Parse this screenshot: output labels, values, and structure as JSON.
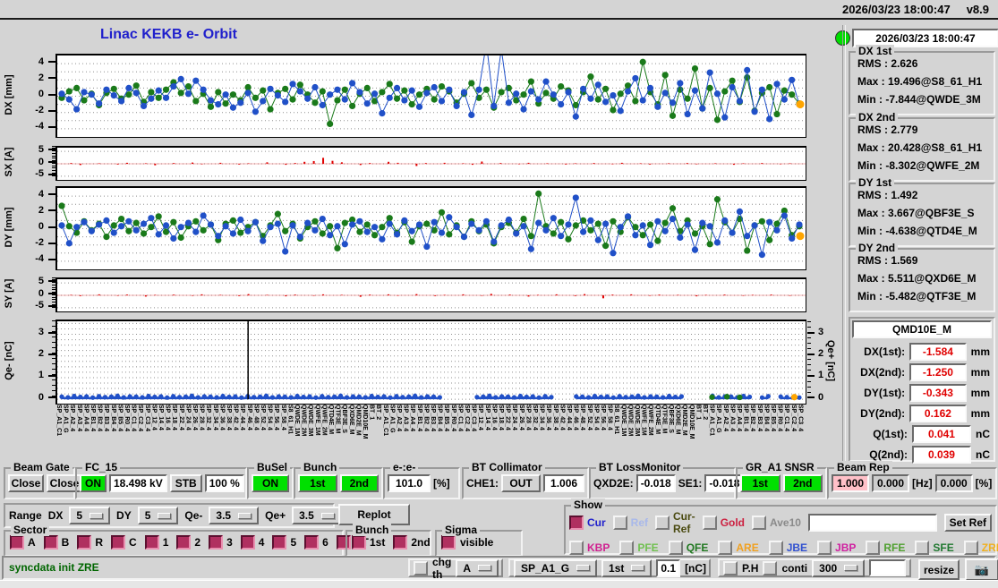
{
  "topbar": {
    "datetime": "2026/03/23 18:00:47",
    "version": "v8.9"
  },
  "header": {
    "title": "Linac KEKB e- Orbit",
    "timestamp": "2026/03/23 18:00:47"
  },
  "colors": {
    "bg": "#d4d4d4",
    "blue_series": "#2050c8",
    "green_series": "#1a7a1a",
    "red_series": "#e00000",
    "orange_marker": "#ffa500",
    "title_blue": "#2020cc",
    "value_red": "#e00000",
    "green_on": "#00e000",
    "pink": "#ffc0c8",
    "check_maroon": "#b03060"
  },
  "stats": {
    "groups": [
      {
        "title": "DX 1st",
        "rows": [
          {
            "k": "RMS :",
            "v": "2.626"
          },
          {
            "k": "Max :",
            "v": "19.496@S8_61_H1"
          },
          {
            "k": "Min :",
            "v": "-7.844@QWDE_3M"
          }
        ]
      },
      {
        "title": "DX 2nd",
        "rows": [
          {
            "k": "RMS :",
            "v": "2.779"
          },
          {
            "k": "Max :",
            "v": "20.428@S8_61_H1"
          },
          {
            "k": "Min :",
            "v": "-8.302@QWFE_2M"
          }
        ]
      },
      {
        "title": "DY 1st",
        "rows": [
          {
            "k": "RMS :",
            "v": "1.492"
          },
          {
            "k": "Max :",
            "v": "3.667@QBF3E_S"
          },
          {
            "k": "Min :",
            "v": "-4.638@QTD4E_M"
          }
        ]
      },
      {
        "title": "DY 2nd",
        "rows": [
          {
            "k": "RMS :",
            "v": "1.569"
          },
          {
            "k": "Max :",
            "v": "5.511@QXD6E_M"
          },
          {
            "k": "Min :",
            "v": "-5.482@QTF3E_M"
          }
        ]
      }
    ]
  },
  "monitor": {
    "title": "QMD10E_M",
    "rows": [
      {
        "label": "DX(1st):",
        "value": "-1.584",
        "unit": "mm"
      },
      {
        "label": "DX(2nd):",
        "value": "-1.250",
        "unit": "mm"
      },
      {
        "label": "DY(1st):",
        "value": "-0.343",
        "unit": "mm"
      },
      {
        "label": "DY(2nd):",
        "value": "0.162",
        "unit": "mm"
      },
      {
        "label": "Q(1st):",
        "value": "0.041",
        "unit": "nC"
      },
      {
        "label": "Q(2nd):",
        "value": "0.039",
        "unit": "nC"
      }
    ]
  },
  "controls": {
    "beam_gate": {
      "title": "Beam Gate",
      "b1": "Close",
      "b2": "Close"
    },
    "fc15": {
      "title": "FC_15",
      "on": "ON",
      "kv": "18.498 kV",
      "stb": "STB",
      "pct": "100 %"
    },
    "busel": {
      "title": "BuSel",
      "on": "ON"
    },
    "bunch": {
      "title": "Bunch",
      "b1": "1st",
      "b2": "2nd"
    },
    "eratio": {
      "title": "e-:e-",
      "value": "101.0",
      "unit": "[%]"
    },
    "bt_collimator": {
      "title": "BT Collimator",
      "label": "CHE1:",
      "state": "OUT",
      "value": "1.006"
    },
    "bt_lossmonitor": {
      "title": "BT LossMonitor",
      "label1": "QXD2E:",
      "value1": "-0.018",
      "label2": "SE1:",
      "value2": "-0.018"
    },
    "gr_a1": {
      "title": "GR_A1 SNSR",
      "b1": "1st",
      "b2": "2nd"
    },
    "beam_rep": {
      "title": "Beam Rep",
      "v1": "1.000",
      "v2": "0.000",
      "hz": "[Hz]",
      "v3": "0.000",
      "pct": "[%]"
    }
  },
  "range": {
    "label": "Range",
    "dx_label": "DX",
    "dx": "5",
    "dy_label": "DY",
    "dy": "5",
    "qem_label": "Qe-",
    "qem": "3.5",
    "qep_label": "Qe+",
    "qep": "3.5",
    "replot": "Replot"
  },
  "show": {
    "title": "Show",
    "row1": [
      {
        "label": "Cur",
        "color": "#2020cc",
        "checked": true
      },
      {
        "label": "Ref",
        "color": "#a8b8ea",
        "checked": false
      },
      {
        "label": "Cur-Ref",
        "color": "#4a4a10",
        "checked": false
      },
      {
        "label": "Gold",
        "color": "#cc2040",
        "checked": false
      },
      {
        "label": "Ave10",
        "color": "#8a8a8a",
        "checked": false
      }
    ],
    "ref_input": "",
    "set_ref": "Set Ref",
    "row2": [
      {
        "label": "KBP",
        "color": "#d02090",
        "checked": false
      },
      {
        "label": "PFE",
        "color": "#70c050",
        "checked": false
      },
      {
        "label": "QFE",
        "color": "#207820",
        "checked": false
      },
      {
        "label": "ARE",
        "color": "#f0a020",
        "checked": false
      },
      {
        "label": "JBE",
        "color": "#3050d0",
        "checked": false
      },
      {
        "label": "JBP",
        "color": "#d020a0",
        "checked": false
      },
      {
        "label": "RFE",
        "color": "#50a030",
        "checked": false
      },
      {
        "label": "SFE",
        "color": "#207830",
        "checked": false
      },
      {
        "label": "ZRE",
        "color": "#f0b020",
        "checked": false
      }
    ]
  },
  "sector": {
    "title": "Sector",
    "items": [
      "A",
      "B",
      "R",
      "C",
      "1",
      "2",
      "3",
      "4",
      "5",
      "6",
      "BT"
    ]
  },
  "bunch_sel": {
    "title": "Bunch",
    "items": [
      "1st",
      "2nd"
    ]
  },
  "sigma": {
    "title": "Sigma",
    "label": "visible"
  },
  "statusbar": {
    "message": "syncdata init ZRE",
    "chg_th": "chg th",
    "th_option": "A",
    "sp_option": "SP_A1_G",
    "bunch_option": "1st",
    "threshold": "0.1",
    "threshold_unit": "[nC]",
    "ph": "P.H",
    "conti": "conti",
    "count_option": "300",
    "extra_value": "",
    "resize": "resize",
    "camera_icon": "camera"
  },
  "xaxis_labels": [
    "SP_A1_C1",
    "SP_A1_G",
    "SP_A2_4",
    "SP_A3_4",
    "SP_A4_4",
    "SP_B1_4",
    "SP_B2_4",
    "SP_B3_4",
    "SP_B4_4",
    "SP_B5_4",
    "SP_R0_4",
    "SP_C1_4",
    "SP_C2_4",
    "SP_C3_4",
    "SP_12_4",
    "SP_14_4",
    "SP_16_4",
    "SP_18_4",
    "SP_22_4",
    "SP_24_4",
    "SP_26_4",
    "SP_28_4",
    "SP_32_4",
    "SP_34_4",
    "SP_36_4",
    "SP_38_4",
    "SP_42_4",
    "SP_44_4",
    "SP_46_4",
    "SP_48_4",
    "SP_52_4",
    "SP_54_4",
    "SP_56_4",
    "SP_58_4",
    "S8_61_H1",
    "QWDE_1M",
    "QWDE_2M",
    "QWDE_3M",
    "QWFE_1M",
    "QWFE_2M",
    "QTD4E_M",
    "QTF3E_M",
    "QBF3E_S",
    "QXD6E_M",
    "QMD2E_M",
    "QMD10E_M",
    "BT_1",
    "BT_2"
  ],
  "chart_data": [
    {
      "id": "dx",
      "type": "scatter-line",
      "ylabel": "DX [mm]",
      "ylim": [
        -5,
        5
      ],
      "yticks": [
        4,
        2,
        0,
        -2,
        -4
      ],
      "grid_values": [
        4,
        3,
        2,
        1,
        0,
        -1,
        -2,
        -3,
        -4
      ],
      "series": [
        {
          "name": "1st bunch",
          "color_key": "blue_series",
          "values": [
            0.3,
            -0.4,
            -1.6,
            0.5,
            0.2,
            -0.9,
            0.8,
            0.1,
            -0.6,
            1.0,
            0.4,
            -1.2,
            -0.3,
            0.7,
            -0.2,
            1.2,
            2.1,
            0.3,
            1.9,
            0.8,
            -0.5,
            -1.0,
            0.2,
            -1.4,
            -0.8,
            0.4,
            -1.9,
            -0.6,
            0.9,
            0.1,
            -0.7,
            1.5,
            0.6,
            -0.3,
            1.1,
            -1.1,
            0.2,
            0.8,
            -0.4,
            1.6,
            0.5,
            -0.9,
            0.3,
            -2.1,
            -0.2,
            1.0,
            -0.5,
            0.7,
            -1.3,
            0.4,
            1.1,
            -0.6,
            0.8,
            -1.2,
            0.5,
            -2.3,
            0.8,
            6.5,
            -1.2,
            5.8,
            -0.8,
            0.3,
            -1.6,
            0.6,
            -0.4,
            1.8,
            0.2,
            -1.0,
            0.5,
            -2.5,
            0.9,
            -0.3,
            1.4,
            -0.7,
            0.1,
            -1.8,
            0.6,
            2.2,
            -0.5,
            1.0,
            -1.3,
            0.4,
            -0.8,
            1.6,
            -2.2,
            0.7,
            -1.5,
            2.9,
            0.3,
            -2.6,
            1.1,
            -0.6,
            3.2,
            -1.9,
            0.8,
            -2.8,
            1.5,
            -0.4,
            2.0,
            -1.0
          ]
        },
        {
          "name": "2nd bunch",
          "color_key": "green_series",
          "values": [
            -0.2,
            0.6,
            1.0,
            -0.5,
            0.3,
            -1.1,
            0.4,
            0.9,
            -0.3,
            0.2,
            1.3,
            -0.7,
            0.5,
            -0.2,
            0.8,
            1.7,
            0.4,
            1.2,
            -0.6,
            0.3,
            -1.3,
            0.5,
            -0.9,
            0.2,
            -0.5,
            1.1,
            -0.2,
            0.7,
            -1.6,
            0.4,
            0.9,
            -0.4,
            1.4,
            0.2,
            -0.8,
            0.6,
            -3.4,
            -0.5,
            0.8,
            -1.2,
            0.3,
            1.0,
            -0.6,
            0.5,
            1.5,
            -0.3,
            0.7,
            -1.0,
            0.2,
            0.9,
            -0.4,
            1.2,
            0.6,
            -0.8,
            0.3,
            1.6,
            -0.2,
            0.8,
            -1.4,
            0.5,
            1.0,
            -0.5,
            0.2,
            1.8,
            -0.9,
            0.4,
            -0.3,
            1.2,
            0.7,
            -1.1,
            0.5,
            2.4,
            -0.4,
            0.9,
            -1.7,
            0.3,
            1.3,
            -0.6,
            4.2,
            0.5,
            -1.0,
            2.6,
            -2.4,
            0.8,
            -0.3,
            3.4,
            -1.5,
            1.0,
            -2.9,
            0.6,
            1.9,
            -0.7,
            2.3,
            -1.8,
            0.4,
            1.1,
            -2.2,
            0.7,
            0.2,
            -0.9
          ]
        }
      ],
      "end_marker": {
        "value": -1.0,
        "color_key": "orange_marker"
      }
    },
    {
      "id": "sx",
      "type": "bar",
      "ylabel": "SX [A]",
      "ylim": [
        -6.5,
        6.5
      ],
      "yticks": [
        5,
        0,
        -5
      ],
      "grid_values": [
        5,
        0,
        -5
      ],
      "minor_tick_step": 1,
      "color_key": "red_series",
      "values": [
        0,
        0.3,
        -0.5,
        0,
        0.2,
        0,
        -0.3,
        0.4,
        0,
        0.2,
        -0.6,
        0,
        0.3,
        0,
        0.5,
        -0.2,
        0,
        0.4,
        0,
        -0.3,
        0.2,
        0,
        0.6,
        0,
        -0.4,
        0.3,
        0.8,
        1.1,
        2.4,
        1.2,
        0.6,
        0,
        -0.5,
        0.3,
        0,
        0.8,
        0.4,
        0,
        -0.9,
        0.3,
        0,
        0.4,
        0,
        0.2,
        -0.4,
        0.9,
        0,
        0.3,
        0,
        -0.2,
        0.4,
        0,
        0.2,
        0,
        -0.3,
        0.2,
        0,
        0.3,
        0,
        -0.2,
        0.4,
        0,
        0.2,
        -0.3,
        0,
        0.2,
        0,
        0.3,
        -0.2,
        0,
        0.2,
        0,
        -0.4,
        0.2,
        0,
        0.3,
        0,
        -0.2,
        0.2,
        0
      ]
    },
    {
      "id": "dy",
      "type": "scatter-line",
      "ylabel": "DY [mm]",
      "ylim": [
        -5,
        5
      ],
      "yticks": [
        4,
        2,
        0,
        -2,
        -4
      ],
      "grid_values": [
        4,
        3,
        2,
        1,
        0,
        -1,
        -2,
        -3,
        -4
      ],
      "series": [
        {
          "name": "1st bunch",
          "color_key": "blue_series",
          "values": [
            0.4,
            -1.8,
            0.2,
            0.8,
            -0.3,
            0.5,
            1.0,
            -0.5,
            0.3,
            0.9,
            -0.2,
            0.6,
            1.3,
            -0.7,
            0.4,
            -1.2,
            0.2,
            0.7,
            -0.4,
            1.6,
            0.5,
            -0.9,
            0.3,
            -0.6,
            1.1,
            -0.3,
            0.8,
            -1.5,
            0.2,
            0.6,
            -2.8,
            0.4,
            -1.0,
            0.7,
            -0.2,
            1.2,
            -0.8,
            0.3,
            -1.9,
            0.5,
            0.9,
            -0.4,
            0.2,
            -1.3,
            0.6,
            -0.7,
            1.0,
            -0.3,
            0.5,
            -2.2,
            0.8,
            -0.5,
            1.4,
            0.2,
            -1.0,
            0.6,
            -0.2,
            0.9,
            -1.6,
            0.4,
            1.1,
            -0.6,
            0.3,
            -2.5,
            0.7,
            -0.2,
            1.3,
            -0.9,
            0.5,
            3.8,
            -0.4,
            1.0,
            -1.4,
            0.6,
            -3.0,
            0.2,
            1.5,
            -0.8,
            0.4,
            -2.0,
            0.9,
            -0.3,
            1.2,
            -1.1,
            0.5,
            -2.6,
            0.7,
            0.3,
            -1.7,
            1.0,
            -0.5,
            2.1,
            -0.9,
            0.4,
            -3.2,
            0.8,
            -0.2,
            1.6,
            -1.2,
            0.5
          ]
        },
        {
          "name": "2nd bunch",
          "color_key": "green_series",
          "values": [
            2.8,
            0.3,
            -0.5,
            0.9,
            -0.2,
            0.6,
            -1.0,
            0.4,
            1.2,
            -0.3,
            0.7,
            -0.6,
            0.2,
            1.5,
            -0.4,
            0.8,
            -1.1,
            0.3,
            0.9,
            -0.2,
            0.5,
            -1.4,
            0.6,
            1.0,
            -0.5,
            0.2,
            0.8,
            -0.9,
            0.4,
            1.8,
            -0.3,
            0.6,
            -1.2,
            0.2,
            0.9,
            -0.6,
            0.3,
            -2.4,
            0.7,
            1.1,
            -0.4,
            0.5,
            -0.8,
            0.2,
            1.3,
            -0.5,
            0.8,
            -1.6,
            0.3,
            0.6,
            -0.2,
            2.0,
            -0.7,
            0.4,
            -1.0,
            0.9,
            -0.3,
            0.5,
            -1.8,
            0.2,
            0.7,
            -0.5,
            1.2,
            -0.9,
            4.3,
            0.3,
            -0.6,
            0.8,
            -1.3,
            0.4,
            1.0,
            -0.2,
            0.6,
            -2.1,
            0.9,
            -0.4,
            1.4,
            0.2,
            -0.8,
            0.5,
            -1.5,
            0.7,
            2.5,
            -0.3,
            1.0,
            -0.6,
            0.3,
            -1.9,
            3.6,
            0.8,
            -0.5,
            1.2,
            -2.7,
            0.4,
            0.9,
            -1.4,
            0.6,
            2.2,
            -0.8,
            0.3
          ]
        }
      ],
      "end_marker": {
        "value": -0.9,
        "color_key": "orange_marker"
      }
    },
    {
      "id": "sy",
      "type": "bar",
      "ylabel": "SY [A]",
      "ylim": [
        -6.5,
        6.5
      ],
      "yticks": [
        5,
        0,
        -5
      ],
      "grid_values": [
        5,
        0,
        -5
      ],
      "minor_tick_step": 1,
      "color_key": "red_series",
      "values": [
        0,
        0.2,
        -0.3,
        0,
        0.4,
        0,
        -0.2,
        0.3,
        0,
        -0.5,
        0.2,
        0,
        0.3,
        0,
        -0.2,
        0.4,
        0,
        0.2,
        0,
        -0.3,
        0.5,
        0,
        0.2,
        0,
        -0.4,
        0.3,
        0,
        -0.2,
        0.4,
        0,
        0.2,
        0,
        -0.6,
        0.3,
        0,
        0.4,
        -0.2,
        0,
        0.5,
        0,
        -0.3,
        0.2,
        0,
        0.4,
        0,
        -0.2,
        0.6,
        0,
        0.3,
        0,
        -0.5,
        0.2,
        0,
        0.4,
        0,
        -0.3,
        0.5,
        0,
        -1.2,
        0.3,
        0,
        0.4,
        0,
        -0.2,
        0.3,
        0,
        0.2,
        0,
        -0.4,
        0.2,
        0,
        0.3,
        0,
        -0.2,
        0.2,
        0,
        0.3,
        0,
        -0.2,
        0
      ]
    },
    {
      "id": "qe",
      "type": "area-scatter",
      "ylabel": "Qe- [nC]",
      "ylabel_right": "Qe+ [nC]",
      "ylim": [
        -0.2,
        3.6
      ],
      "yticks": [
        3,
        2,
        1,
        0
      ],
      "grid_step": 0.25,
      "minor_tick_step": 0.25,
      "spike_frac": 0.255,
      "color_key": "blue_series",
      "values": [
        0.12,
        0.09,
        0.15,
        0.11,
        0.13,
        0.08,
        0.14,
        0.1,
        0.12,
        0.16,
        0.09,
        0.13,
        0.12,
        0.09,
        0.15,
        0.11,
        0.13,
        0.08,
        0.14,
        0.1,
        0.12,
        0.16,
        0.09,
        0.13,
        0.12,
        0.09,
        0.15,
        0.11,
        0.13,
        0.08,
        0.14,
        0.1,
        0.12,
        0.16,
        0.09,
        0.13,
        0.12,
        0.09,
        0.15,
        0.11,
        0.13,
        0.08,
        0.14,
        0.1,
        0.12,
        0.16,
        0.09,
        0.13,
        0.12,
        0.09,
        0.15,
        0.11,
        0.13,
        0.08,
        0.14,
        0.1,
        0.12,
        0.16,
        0.09,
        0.13,
        0.12,
        0.09,
        0,
        0,
        0,
        0,
        0,
        0.1,
        0.12,
        0.16,
        0.09,
        0.13,
        0.12,
        0.09,
        0.15,
        0.11,
        0.13,
        0.08,
        0.14,
        0.1,
        0,
        0,
        0,
        0.13,
        0.12,
        0.09,
        0.15,
        0.11,
        0.13,
        0.08,
        0.14,
        0.1,
        0.12,
        0.16,
        0.09,
        0.13,
        0.12,
        0.09,
        0.15,
        0.11,
        0.13,
        0,
        0,
        0,
        0,
        0.16,
        0.09,
        0.13,
        0.12,
        0.09,
        0.15,
        0.11,
        0,
        0.08,
        0.14,
        0,
        0.12,
        0.1,
        0.09,
        0.08
      ],
      "green_points": [
        [
          0.875,
          0.1
        ],
        [
          0.895,
          0.12
        ],
        [
          0.912,
          0.09
        ]
      ],
      "orange_point": [
        0.985,
        0.1
      ]
    }
  ]
}
